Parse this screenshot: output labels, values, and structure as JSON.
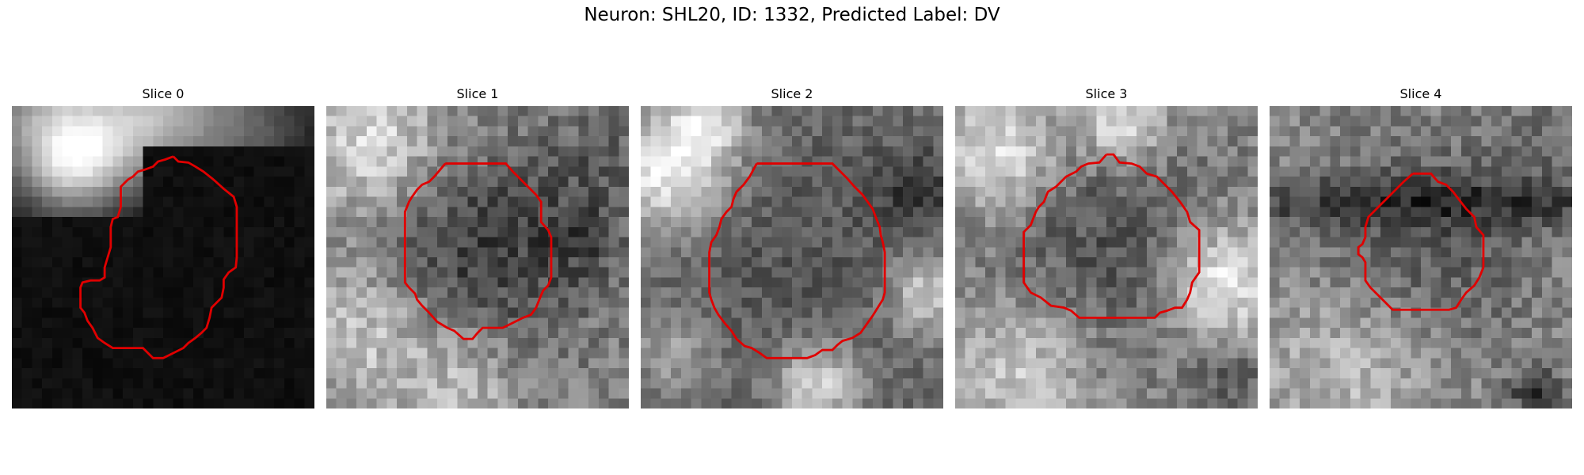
{
  "figure": {
    "suptitle": "Neuron: SHL20, ID: 1332, Predicted Label: DV",
    "outline_color": "#e00000",
    "panels": [
      {
        "title": "Slice 0",
        "appearance": "dark background, brighter band upper-left"
      },
      {
        "title": "Slice 1",
        "appearance": "grey textured, bright surround"
      },
      {
        "title": "Slice 2",
        "appearance": "grey textured, bright blobs at corners"
      },
      {
        "title": "Slice 3",
        "appearance": "grey textured, bright upper-left and right"
      },
      {
        "title": "Slice 4",
        "appearance": "grey textured, dark horizontal band"
      }
    ]
  }
}
